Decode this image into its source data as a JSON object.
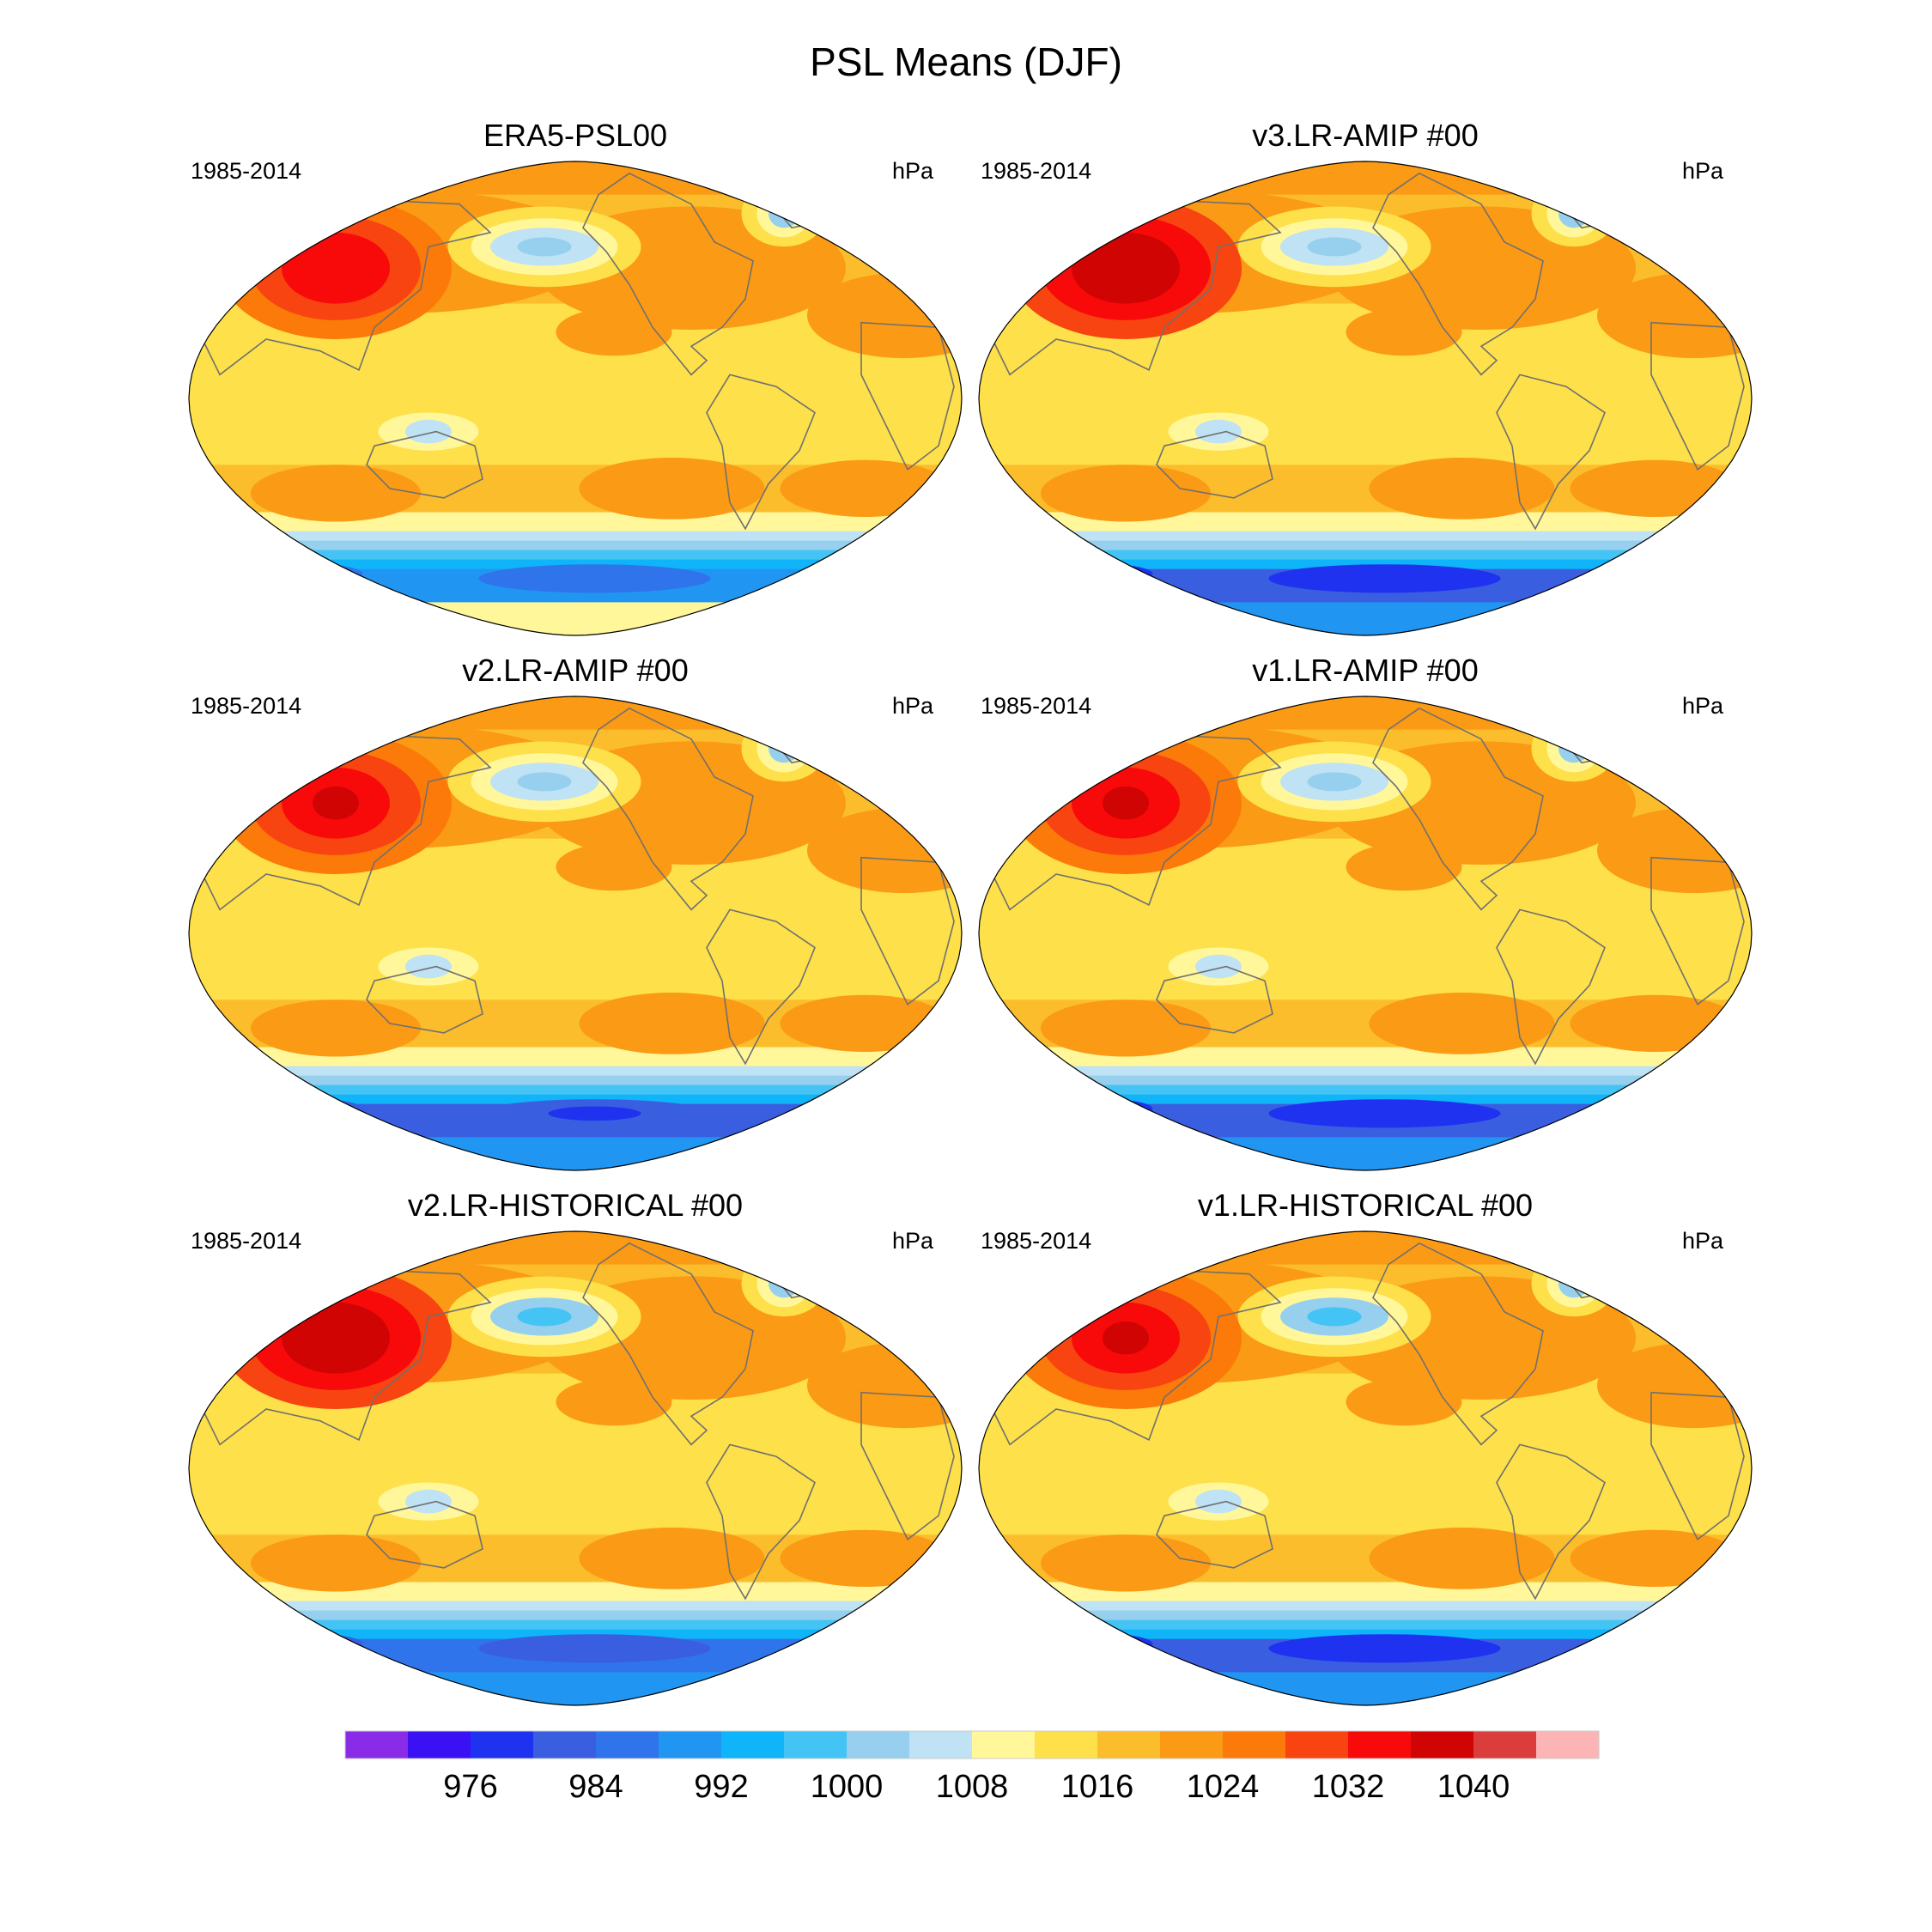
{
  "chart_data": {
    "type": "filled-contour-map",
    "title": "PSL Means (DJF)",
    "projection": "Robinson",
    "variable": "PSL",
    "units": "hPa",
    "colorbar": {
      "levels": [
        972,
        976,
        980,
        984,
        988,
        992,
        996,
        1000,
        1004,
        1008,
        1012,
        1016,
        1020,
        1024,
        1028,
        1032,
        1036,
        1040,
        1044
      ],
      "tick_labels": [
        "976",
        "984",
        "992",
        "1000",
        "1008",
        "1016",
        "1024",
        "1032",
        "1040"
      ],
      "tick_values": [
        976,
        984,
        992,
        1000,
        1008,
        1016,
        1024,
        1032,
        1040
      ],
      "colors": [
        "#8a2be8",
        "#3a10f5",
        "#1e32f0",
        "#3a5ee0",
        "#2f74ea",
        "#2096f2",
        "#10b4f8",
        "#44c4f4",
        "#96d0ee",
        "#bfe2f4",
        "#fff79a",
        "#fde04a",
        "#fbbd2c",
        "#fb9a14",
        "#fb7a0a",
        "#f84410",
        "#f80a0a",
        "#d10404",
        "#db3c3c",
        "#fdb4b4"
      ]
    },
    "panels": [
      {
        "title": "ERA5-PSL00",
        "period": "1985-2014",
        "units": "hPa",
        "features": {
          "siberian_high": 1034,
          "aleutian_low": 1002,
          "icelandic_low": 1002,
          "subtropical_highs": 1022,
          "southern_ocean_trough": 984,
          "antarctica": "high"
        }
      },
      {
        "title": "v3.LR-AMIP  #00",
        "period": "1985-2014",
        "units": "hPa",
        "features": {
          "siberian_high": 1038,
          "aleutian_low": 1000,
          "icelandic_low": 1002,
          "subtropical_highs": 1022,
          "southern_ocean_trough": 976,
          "antarctica": "low"
        }
      },
      {
        "title": "v2.LR-AMIP  #00",
        "period": "1985-2014",
        "units": "hPa",
        "features": {
          "siberian_high": 1037,
          "aleutian_low": 1002,
          "icelandic_low": 1003,
          "subtropical_highs": 1023,
          "southern_ocean_trough": 978,
          "antarctica": "low"
        }
      },
      {
        "title": "v1.LR-AMIP  #00",
        "period": "1985-2014",
        "units": "hPa",
        "features": {
          "siberian_high": 1037,
          "aleutian_low": 1000,
          "icelandic_low": 1002,
          "subtropical_highs": 1022,
          "southern_ocean_trough": 977,
          "antarctica": "low"
        }
      },
      {
        "title": "v2.LR-HISTORICAL  #00",
        "period": "1985-2014",
        "units": "hPa",
        "features": {
          "siberian_high": 1038,
          "aleutian_low": 999,
          "icelandic_low": 1003,
          "subtropical_highs": 1023,
          "southern_ocean_trough": 980,
          "antarctica": "low"
        }
      },
      {
        "title": "v1.LR-HISTORICAL  #00",
        "period": "1985-2014",
        "units": "hPa",
        "features": {
          "siberian_high": 1037,
          "aleutian_low": 999,
          "icelandic_low": 1002,
          "subtropical_highs": 1022,
          "southern_ocean_trough": 976,
          "antarctica": "low"
        }
      }
    ]
  }
}
